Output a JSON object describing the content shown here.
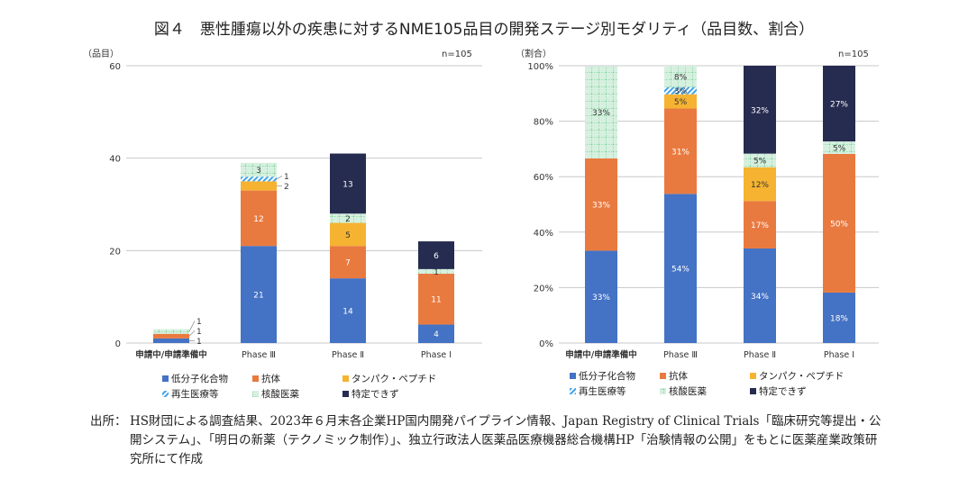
{
  "title": "図４　悪性腫瘍以外の疾患に対するNME105品目の開発ステージ別モダリティ（品目数、割合）",
  "colors": {
    "低分子化合物": "#4472c4",
    "抗体": "#e97a3f",
    "タンパク・ペプチド": "#f5b331",
    "再生医療等": "#5ab4ee",
    "核酸医薬": "#c8ebd6",
    "特定できず": "#262b50"
  },
  "chart_data": [
    {
      "type": "bar",
      "stacked": true,
      "unit_label": "（品目）",
      "n_label": "n=105",
      "ylim": [
        0,
        60
      ],
      "yticks": [
        "0",
        "20",
        "40",
        "60"
      ],
      "grid": true,
      "categories": [
        "申請中/申請準備中",
        "Phase Ⅲ",
        "Phase Ⅱ",
        "Phase Ⅰ"
      ],
      "series": [
        {
          "name": "低分子化合物",
          "values": [
            1,
            21,
            14,
            4
          ],
          "labels": [
            "1",
            "21",
            "14",
            "4"
          ]
        },
        {
          "name": "抗体",
          "values": [
            1,
            12,
            7,
            11
          ],
          "labels": [
            "1",
            "12",
            "7",
            "11"
          ]
        },
        {
          "name": "タンパク・ペプチド",
          "values": [
            0,
            2,
            5,
            0
          ],
          "labels": [
            "",
            "2",
            "5",
            ""
          ]
        },
        {
          "name": "再生医療等",
          "values": [
            0,
            1,
            0,
            0
          ],
          "labels": [
            "",
            "1",
            "",
            ""
          ]
        },
        {
          "name": "核酸医薬",
          "values": [
            1,
            3,
            2,
            1
          ],
          "labels": [
            "1",
            "3",
            "2",
            "1"
          ]
        },
        {
          "name": "特定できず",
          "values": [
            0,
            0,
            13,
            6
          ],
          "labels": [
            "",
            "",
            "13",
            "6"
          ]
        }
      ]
    },
    {
      "type": "bar",
      "stacked": true,
      "unit_label": "（割合）",
      "n_label": "n=105",
      "ylim": [
        0,
        100
      ],
      "yticks": [
        "0%",
        "20%",
        "40%",
        "60%",
        "80%",
        "100%"
      ],
      "grid": true,
      "categories": [
        "申請中/申請準備中",
        "Phase Ⅲ",
        "Phase Ⅱ",
        "Phase Ⅰ"
      ],
      "series": [
        {
          "name": "低分子化合物",
          "values": [
            33.3,
            53.8,
            34.1,
            18.2
          ],
          "labels": [
            "33%",
            "54%",
            "34%",
            "18%"
          ]
        },
        {
          "name": "抗体",
          "values": [
            33.3,
            30.8,
            17.1,
            50.0
          ],
          "labels": [
            "33%",
            "31%",
            "17%",
            "50%"
          ]
        },
        {
          "name": "タンパク・ペプチド",
          "values": [
            0,
            5.1,
            12.2,
            0
          ],
          "labels": [
            "",
            "5%",
            "12%",
            ""
          ]
        },
        {
          "name": "再生医療等",
          "values": [
            0,
            2.6,
            0,
            0
          ],
          "labels": [
            "",
            "3%",
            "",
            ""
          ]
        },
        {
          "name": "核酸医薬",
          "values": [
            33.3,
            7.7,
            4.9,
            4.5
          ],
          "labels": [
            "33%",
            "8%",
            "5%",
            "5%"
          ]
        },
        {
          "name": "特定できず",
          "values": [
            0,
            0,
            31.7,
            27.3
          ],
          "labels": [
            "",
            "",
            "32%",
            "27%"
          ]
        }
      ]
    }
  ],
  "note": {
    "label": "出所：",
    "text": "HS財団による調査結果、2023年６月末各企業HP国内開発パイプライン情報、Japan Registry of Clinical Trials「臨床研究等提出・公開システム」、「明日の新薬（テクノミック制作）」、独立行政法人医薬品医療機器総合機構HP「治験情報の公開」をもとに医薬産業政策研究所にて作成"
  }
}
